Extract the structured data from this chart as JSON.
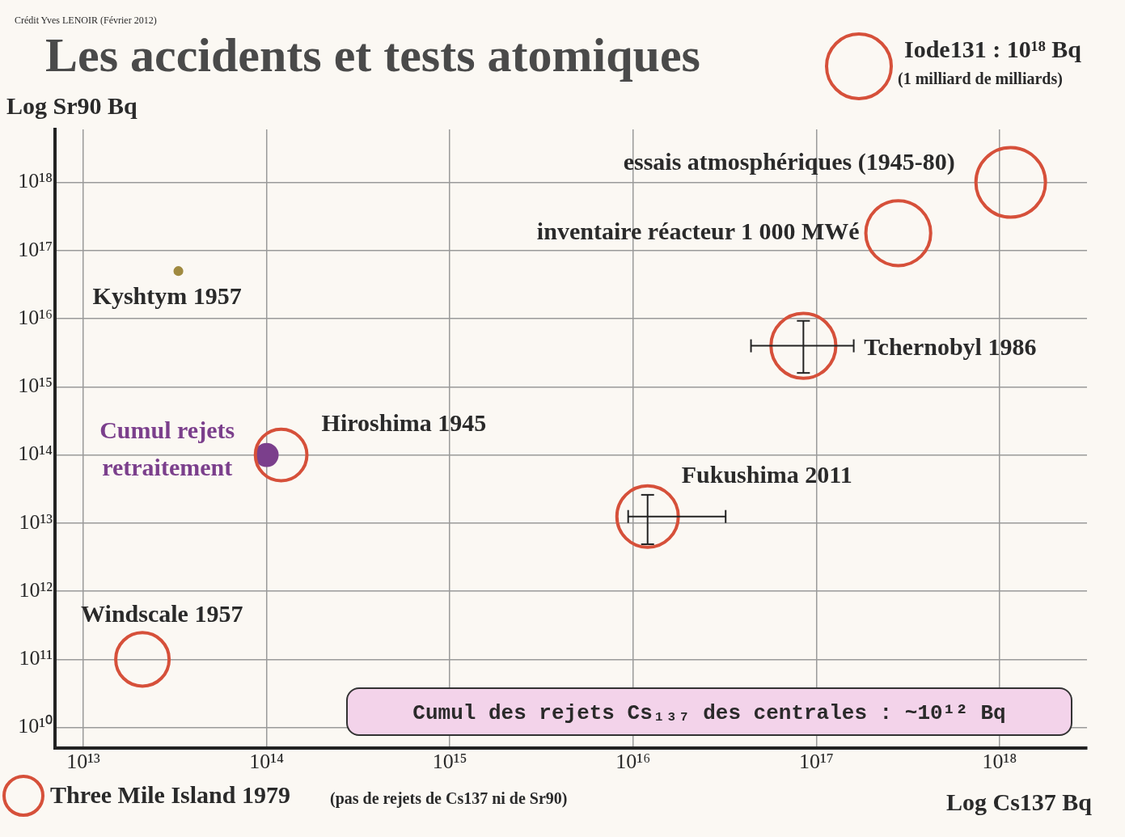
{
  "chart_data": {
    "type": "bubble",
    "title": "Les accidents et tests atomiques",
    "xlabel": "Log Cs137 Bq",
    "ylabel": "Log Sr90 Bq",
    "log": "xy",
    "xlim": [
      7000000000000.0,
      3e+18
    ],
    "ylim": [
      5000000000.0,
      6e+18
    ],
    "xticks": [
      {
        "value": 10000000000000.0,
        "label": "10¹³"
      },
      {
        "value": 100000000000000.0,
        "label": "10¹⁴"
      },
      {
        "value": 1000000000000000.0,
        "label": "10¹⁵"
      },
      {
        "value": 1e+16,
        "label": "10¹⁶"
      },
      {
        "value": 1e+17,
        "label": "10¹⁷"
      },
      {
        "value": 1e+18,
        "label": "10¹⁸"
      }
    ],
    "yticks": [
      {
        "value": 10000000000.0,
        "label": "10¹⁰"
      },
      {
        "value": 100000000000.0,
        "label": "10¹¹"
      },
      {
        "value": 1000000000000.0,
        "label": "10¹²"
      },
      {
        "value": 10000000000000.0,
        "label": "10¹³"
      },
      {
        "value": 100000000000000.0,
        "label": "10¹⁴"
      },
      {
        "value": 1000000000000000.0,
        "label": "10¹⁵"
      },
      {
        "value": 1e+16,
        "label": "10¹⁶"
      },
      {
        "value": 1e+17,
        "label": "10¹⁷"
      },
      {
        "value": 1e+18,
        "label": "10¹⁸"
      }
    ],
    "grid": true,
    "legend": false,
    "marker": "circle",
    "annotations": [
      "Crédit Yves LENOIR (Février 2012)",
      "Iode131 : 10¹⁸ Bq",
      "(1 milliard de milliards)",
      "Three Mile Island 1979",
      "(pas de rejets de Cs137 ni de Sr90)",
      "Cumul des rejets Cs₁₃₇ des centrales : ~10¹² Bq"
    ],
    "series": [
      {
        "name": "essais atmosphériques (1945-80)",
        "color": "#d6503a",
        "x": [
          1.15e+18
        ],
        "values": [
          1e+18
        ],
        "sizes": [
          1
        ]
      },
      {
        "name": "inventaire réacteur 1 000 MWé",
        "color": "#d6503a",
        "x": [
          2.8e+17
        ],
        "values": [
          1.8e+17
        ],
        "sizes": [
          0.87
        ]
      },
      {
        "name": "Tchernobyl 1986",
        "color": "#d6503a",
        "x": [
          8.5e+16
        ],
        "values": [
          4000000000000000.0
        ],
        "sizes": [
          0.87
        ],
        "xerrors": [
          [
            4.4e+16,
            1.6e+17
          ]
        ],
        "errors": [
          [
            1600000000000000.0,
            9300000000000000.0
          ]
        ]
      },
      {
        "name": "Fukushima 2011",
        "color": "#d6503a",
        "x": [
          1.2e+16
        ],
        "values": [
          12500000000000.0
        ],
        "sizes": [
          0.78
        ],
        "xerrors": [
          [
            9400000000000000.0,
            3.2e+16
          ]
        ],
        "errors": [
          [
            4900000000000.0,
            26000000000000.0
          ]
        ]
      },
      {
        "name": "Hiroshima 1945",
        "color": "#d6503a",
        "x": [
          120000000000000.0
        ],
        "values": [
          100000000000000.0
        ],
        "sizes": [
          0.55
        ]
      },
      {
        "name": "Cumul rejets retraitement",
        "color": "#7b3f8c",
        "x": [
          100000000000000.0
        ],
        "values": [
          100000000000000.0
        ],
        "sizes": [
          0.09
        ]
      },
      {
        "name": "Kyshtym 1957",
        "color": "#a08a40",
        "x": [
          33000000000000.0
        ],
        "values": [
          5e+16
        ],
        "sizes": [
          0.009
        ]
      },
      {
        "name": "Windscale 1957",
        "color": "#d6503a",
        "x": [
          21000000000000.0
        ],
        "values": [
          100000000000.0
        ],
        "sizes": [
          0.59
        ]
      }
    ]
  }
}
